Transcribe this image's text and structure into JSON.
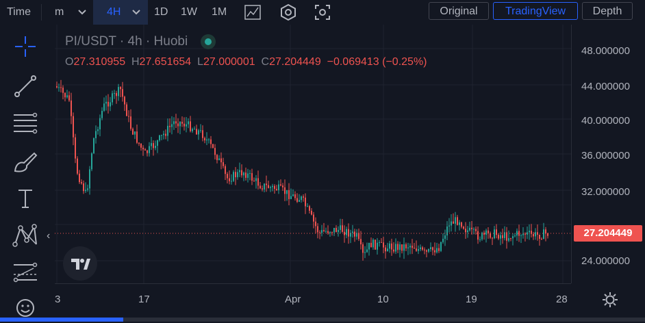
{
  "toolbar": {
    "time_label": "Time",
    "minutes_label": "m",
    "selected_interval": "4H",
    "intervals": [
      "1D",
      "1W",
      "1M"
    ],
    "tabs": [
      "Original",
      "TradingView",
      "Depth"
    ],
    "active_tab": "TradingView"
  },
  "legend": {
    "symbol": "PI/USDT",
    "interval": "4h",
    "exchange": "Huobi",
    "status_color": "#26a69a",
    "open_key": "O",
    "open": "27.310955",
    "high_key": "H",
    "high": "27.651654",
    "low_key": "L",
    "low": "27.000001",
    "close_key": "C",
    "close": "27.204449",
    "change": "−0.069413 (−0.25%)"
  },
  "price_axis": {
    "labels": [
      "48.000000",
      "44.000000",
      "40.000000",
      "36.000000",
      "32.000000",
      "24.000000"
    ],
    "current_price": "27.204449"
  },
  "time_axis": {
    "labels": [
      "3",
      "17",
      "Apr",
      "10",
      "19",
      "28"
    ]
  },
  "sidebar": {
    "icons": [
      "crosshair-icon",
      "trend-line-icon",
      "fib-lines-icon",
      "brush-icon",
      "text-icon",
      "pattern-icon",
      "measure-icon",
      "emoji-icon"
    ],
    "collapse_glyph": "‹"
  },
  "colors": {
    "up": "#26a69a",
    "down": "#ef5350",
    "accent": "#2962ff",
    "background": "#131722"
  }
}
